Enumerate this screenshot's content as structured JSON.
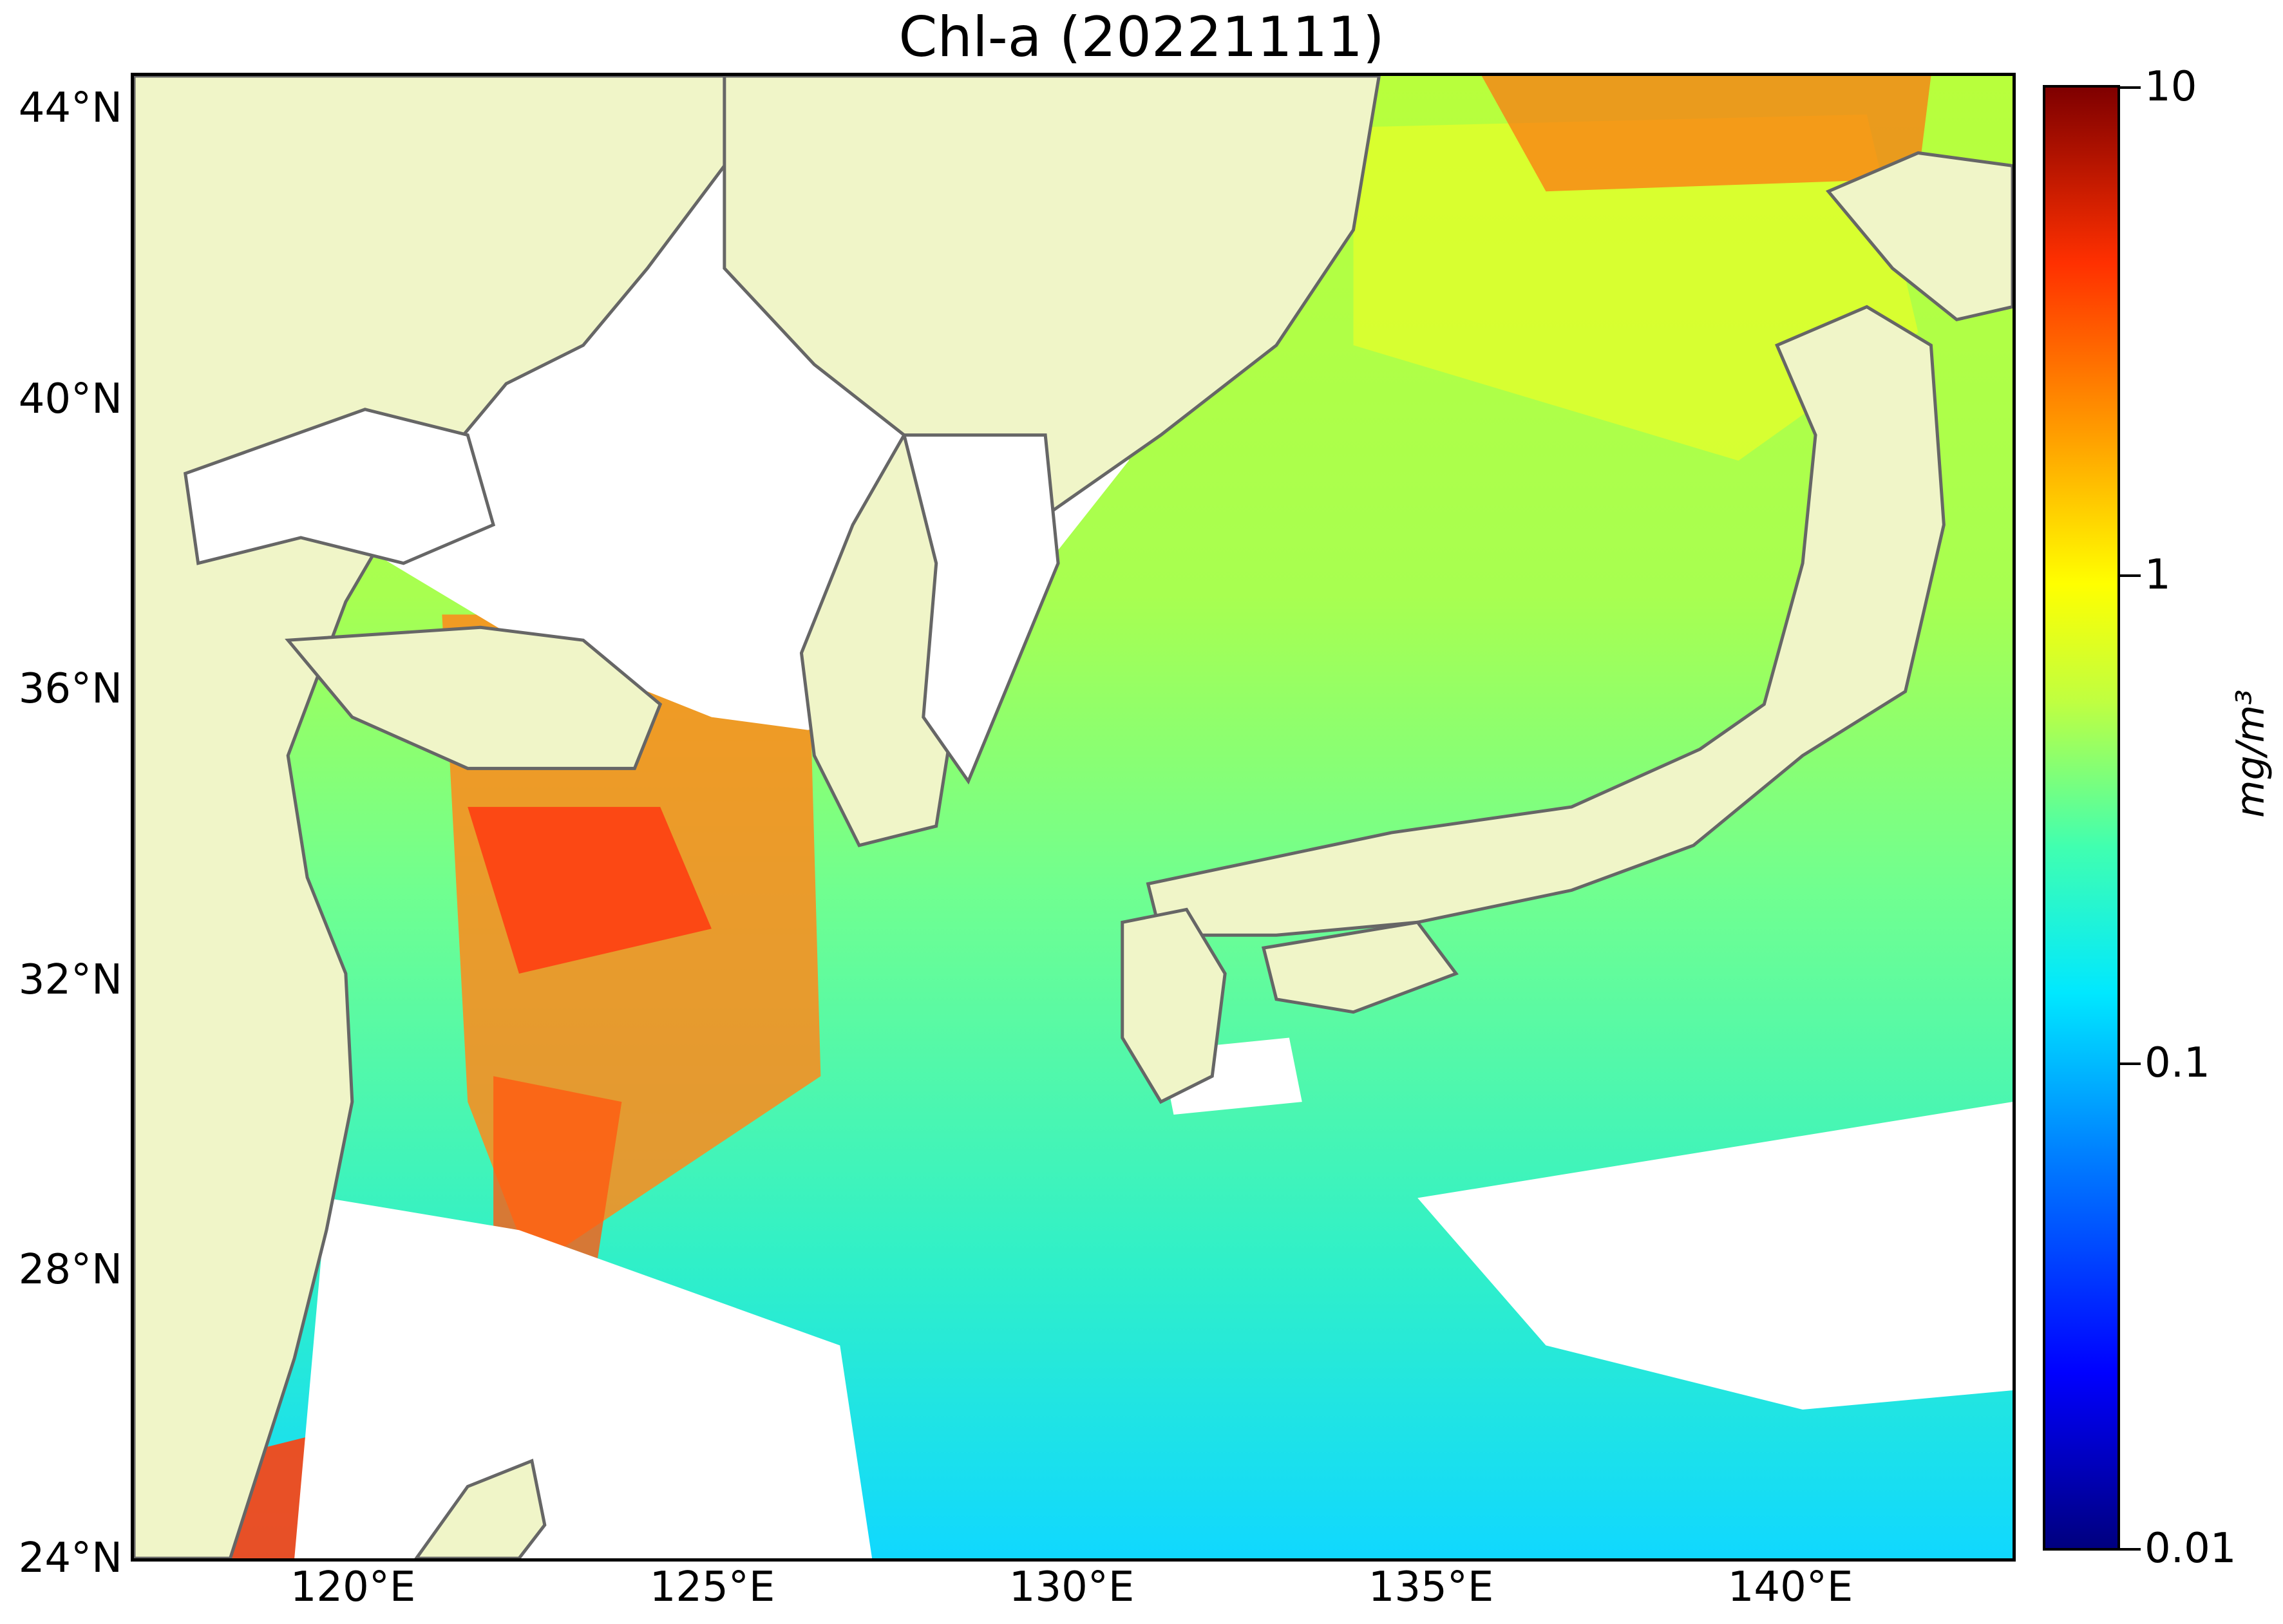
{
  "title": "Chl-a (20221111)",
  "map": {
    "region_icon": "east-asia-sea-map",
    "land_color": "#f0f5c8",
    "coast_color": "#666666",
    "no_data_color": "#ffffff"
  },
  "axes": {
    "latitude_ticks": [
      "44°N",
      "40°N",
      "36°N",
      "32°N",
      "28°N",
      "24°N"
    ],
    "longitude_ticks": [
      "120°E",
      "125°E",
      "130°E",
      "135°E",
      "140°E"
    ]
  },
  "colorbar": {
    "scale": "log",
    "range": [
      0.01,
      10
    ],
    "tick_labels": [
      "10",
      "1",
      "0.1",
      "0.01"
    ],
    "unit_label": "mg/m³",
    "colormap": "jet"
  }
}
